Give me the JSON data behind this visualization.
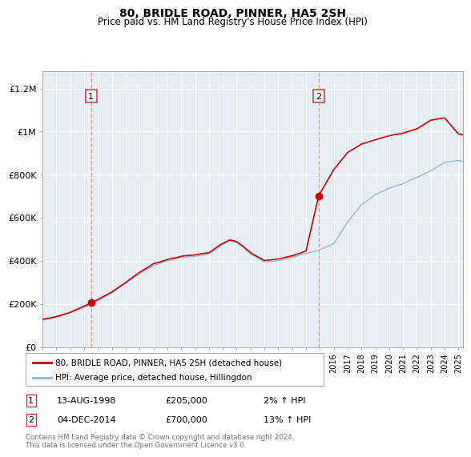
{
  "title": "80, BRIDLE ROAD, PINNER, HA5 2SH",
  "subtitle": "Price paid vs. HM Land Registry's House Price Index (HPI)",
  "bg_color": "#ffffff",
  "plot_bg_color": "#e8eef8",
  "grid_color": "#ffffff",
  "red_line_color": "#cc0000",
  "blue_line_color": "#8ab8d8",
  "shade_color": "#dce8f5",
  "dashed_color": "#dd8888",
  "point1_value": 205000,
  "point2_value": 700000,
  "annotation1_label": "1",
  "annotation2_label": "2",
  "legend_label_red": "80, BRIDLE ROAD, PINNER, HA5 2SH (detached house)",
  "legend_label_blue": "HPI: Average price, detached house, Hillingdon",
  "table_row1": [
    "1",
    "13-AUG-1998",
    "£205,000",
    "2% ↑ HPI"
  ],
  "table_row2": [
    "2",
    "04-DEC-2014",
    "£700,000",
    "13% ↑ HPI"
  ],
  "footer": "Contains HM Land Registry data © Crown copyright and database right 2024.\nThis data is licensed under the Open Government Licence v3.0.",
  "ylim": [
    0,
    1280000
  ],
  "yticks": [
    0,
    200000,
    400000,
    600000,
    800000,
    1000000,
    1200000
  ],
  "ytick_labels": [
    "£0",
    "£200K",
    "£400K",
    "£600K",
    "£800K",
    "£1M",
    "£1.2M"
  ],
  "start_year": 1995,
  "end_year": 2025,
  "hpi_keypoints_x": [
    0,
    12,
    24,
    36,
    48,
    60,
    72,
    84,
    96,
    108,
    120,
    132,
    144,
    150,
    156,
    162,
    168,
    174,
    180,
    192,
    204,
    216,
    228,
    239,
    252,
    264,
    276,
    288,
    300,
    312,
    324,
    336,
    348,
    360,
    364
  ],
  "hpi_keypoints_y": [
    125000,
    138000,
    158000,
    185000,
    215000,
    250000,
    295000,
    340000,
    378000,
    400000,
    415000,
    420000,
    430000,
    450000,
    475000,
    490000,
    482000,
    460000,
    430000,
    395000,
    400000,
    415000,
    435000,
    450000,
    480000,
    580000,
    660000,
    710000,
    740000,
    760000,
    790000,
    820000,
    860000,
    870000,
    865000
  ],
  "red_keypoints_x": [
    0,
    12,
    24,
    36,
    42,
    48,
    60,
    72,
    84,
    96,
    108,
    120,
    132,
    144,
    150,
    156,
    162,
    168,
    174,
    180,
    192,
    204,
    216,
    228,
    239,
    252,
    264,
    276,
    288,
    300,
    312,
    324,
    336,
    348,
    360,
    364
  ],
  "red_keypoints_y": [
    128000,
    141000,
    162000,
    191000,
    205000,
    222000,
    258000,
    302000,
    348000,
    388000,
    406000,
    422000,
    428000,
    438000,
    460000,
    482000,
    498000,
    490000,
    465000,
    438000,
    402000,
    408000,
    422000,
    443000,
    700000,
    820000,
    900000,
    940000,
    960000,
    980000,
    990000,
    1010000,
    1050000,
    1060000,
    985000,
    980000
  ]
}
